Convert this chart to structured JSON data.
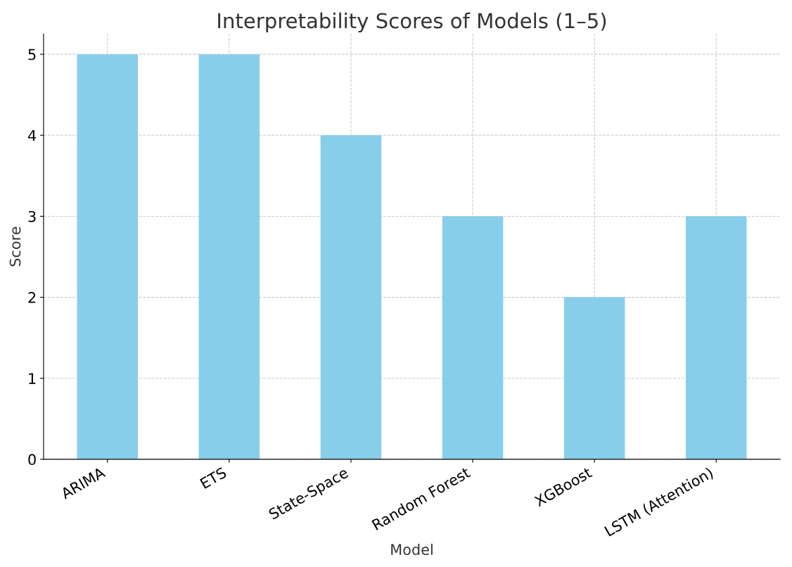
{
  "chart_data": {
    "type": "bar",
    "title": "Interpretability Scores of Models (1–5)",
    "xlabel": "Model",
    "ylabel": "Score",
    "categories": [
      "ARIMA",
      "ETS",
      "State-Space",
      "Random Forest",
      "XGBoost",
      "LSTM (Attention)"
    ],
    "values": [
      5,
      5,
      4,
      3,
      2,
      3
    ],
    "color": "#87ceeb",
    "ylim": [
      0,
      5.25
    ],
    "yticks": [
      0,
      1,
      2,
      3,
      4,
      5
    ],
    "grid": true
  }
}
